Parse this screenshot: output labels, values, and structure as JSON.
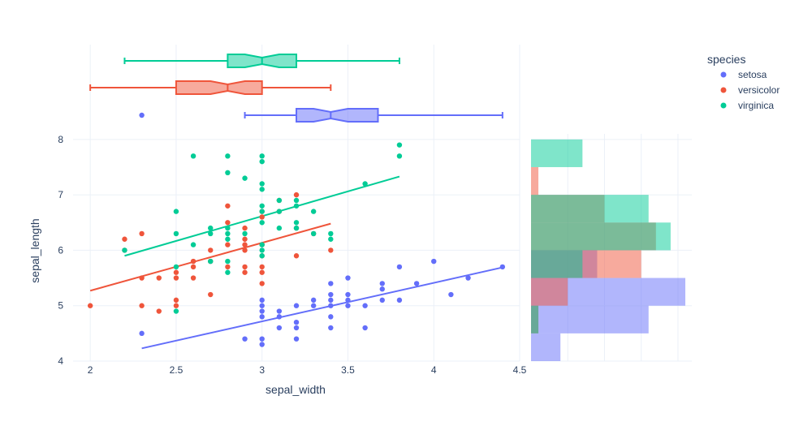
{
  "chart_data": {
    "type": "scatter",
    "xlabel": "sepal_width",
    "ylabel": "sepal_length",
    "xlim": [
      1.9,
      4.5
    ],
    "ylim": [
      4.0,
      8.1
    ],
    "x_ticks": [
      2,
      2.5,
      3,
      3.5,
      4,
      4.5
    ],
    "y_ticks": [
      4,
      5,
      6,
      7,
      8
    ],
    "grid": true,
    "legend": {
      "title": "species",
      "placement": "top-right"
    },
    "series": [
      {
        "name": "setosa",
        "color": "#636efa",
        "points": [
          [
            2.3,
            4.5
          ],
          [
            2.9,
            4.4
          ],
          [
            3,
            4.3
          ],
          [
            3,
            4.4
          ],
          [
            3,
            4.8
          ],
          [
            3,
            4.9
          ],
          [
            3,
            5
          ],
          [
            3,
            5.1
          ],
          [
            3.1,
            4.6
          ],
          [
            3.1,
            4.8
          ],
          [
            3.1,
            4.9
          ],
          [
            3.2,
            4.4
          ],
          [
            3.2,
            4.6
          ],
          [
            3.2,
            4.7
          ],
          [
            3.2,
            5
          ],
          [
            3.3,
            5
          ],
          [
            3.3,
            5.1
          ],
          [
            3.4,
            4.6
          ],
          [
            3.4,
            4.8
          ],
          [
            3.4,
            5
          ],
          [
            3.4,
            5.1
          ],
          [
            3.4,
            5.2
          ],
          [
            3.4,
            5.4
          ],
          [
            3.5,
            5
          ],
          [
            3.5,
            5.1
          ],
          [
            3.5,
            5.2
          ],
          [
            3.5,
            5.5
          ],
          [
            3.6,
            4.6
          ],
          [
            3.6,
            5
          ],
          [
            3.7,
            5.1
          ],
          [
            3.7,
            5.3
          ],
          [
            3.7,
            5.4
          ],
          [
            3.8,
            5.1
          ],
          [
            3.8,
            5.7
          ],
          [
            3.9,
            5.4
          ],
          [
            4,
            5.8
          ],
          [
            4.1,
            5.2
          ],
          [
            4.2,
            5.5
          ],
          [
            4.4,
            5.7
          ]
        ],
        "trend": [
          [
            2.3,
            4.23
          ],
          [
            4.4,
            5.69
          ]
        ],
        "box": {
          "q1": 3.2,
          "median": 3.4,
          "q3": 3.675,
          "notch_low": 3.3,
          "notch_high": 3.5,
          "whisker_low": 2.9,
          "whisker_high": 4.4,
          "outliers": [
            2.3
          ]
        },
        "histogram": [
          {
            "bin": [
              4,
              4.5
            ],
            "count": 4
          },
          {
            "bin": [
              4.5,
              5
            ],
            "count": 16
          },
          {
            "bin": [
              5,
              5.5
            ],
            "count": 21
          },
          {
            "bin": [
              5.5,
              6
            ],
            "count": 9
          }
        ]
      },
      {
        "name": "versicolor",
        "color": "#ef553b",
        "points": [
          [
            2,
            5
          ],
          [
            2.2,
            6
          ],
          [
            2.2,
            6.2
          ],
          [
            2.3,
            5
          ],
          [
            2.3,
            5.5
          ],
          [
            2.3,
            6.3
          ],
          [
            2.4,
            4.9
          ],
          [
            2.4,
            5.5
          ],
          [
            2.5,
            5
          ],
          [
            2.5,
            5.1
          ],
          [
            2.5,
            5.5
          ],
          [
            2.5,
            5.6
          ],
          [
            2.6,
            5.5
          ],
          [
            2.6,
            5.7
          ],
          [
            2.6,
            5.8
          ],
          [
            2.7,
            5.2
          ],
          [
            2.7,
            5.8
          ],
          [
            2.7,
            6
          ],
          [
            2.8,
            5.7
          ],
          [
            2.8,
            6.1
          ],
          [
            2.8,
            6.5
          ],
          [
            2.8,
            6.8
          ],
          [
            2.9,
            5.6
          ],
          [
            2.9,
            5.7
          ],
          [
            2.9,
            6
          ],
          [
            2.9,
            6.1
          ],
          [
            2.9,
            6.2
          ],
          [
            2.9,
            6.4
          ],
          [
            3,
            5.4
          ],
          [
            3,
            5.6
          ],
          [
            3,
            5.7
          ],
          [
            3,
            5.9
          ],
          [
            3,
            6.1
          ],
          [
            3,
            6.6
          ],
          [
            3,
            6.7
          ],
          [
            3.1,
            6.7
          ],
          [
            3.1,
            6.9
          ],
          [
            3.2,
            5.9
          ],
          [
            3.2,
            6.4
          ],
          [
            3.2,
            7
          ],
          [
            3.3,
            6.3
          ],
          [
            3.4,
            6
          ]
        ],
        "trend": [
          [
            2,
            5.27
          ],
          [
            3.4,
            6.48
          ]
        ],
        "box": {
          "q1": 2.5,
          "median": 2.8,
          "q3": 3.0,
          "notch_low": 2.7,
          "notch_high": 2.9,
          "whisker_low": 2.0,
          "whisker_high": 3.4,
          "outliers": []
        },
        "histogram": [
          {
            "bin": [
              4.5,
              5
            ],
            "count": 1
          },
          {
            "bin": [
              5,
              5.5
            ],
            "count": 5
          },
          {
            "bin": [
              5.5,
              6
            ],
            "count": 15
          },
          {
            "bin": [
              6,
              6.5
            ],
            "count": 17
          },
          {
            "bin": [
              6.5,
              7
            ],
            "count": 10
          },
          {
            "bin": [
              7,
              7.5
            ],
            "count": 1
          }
        ]
      },
      {
        "name": "virginica",
        "color": "#00cc96",
        "points": [
          [
            2.2,
            6
          ],
          [
            2.5,
            4.9
          ],
          [
            2.5,
            5.7
          ],
          [
            2.5,
            6.3
          ],
          [
            2.5,
            6.7
          ],
          [
            2.6,
            6.1
          ],
          [
            2.6,
            7.7
          ],
          [
            2.7,
            5.8
          ],
          [
            2.7,
            6.3
          ],
          [
            2.7,
            6.4
          ],
          [
            2.8,
            5.6
          ],
          [
            2.8,
            5.8
          ],
          [
            2.8,
            6.2
          ],
          [
            2.8,
            6.3
          ],
          [
            2.8,
            6.4
          ],
          [
            2.8,
            7.4
          ],
          [
            2.8,
            7.7
          ],
          [
            2.9,
            6.3
          ],
          [
            2.9,
            7.3
          ],
          [
            3,
            5.9
          ],
          [
            3,
            6
          ],
          [
            3,
            6.1
          ],
          [
            3,
            6.5
          ],
          [
            3,
            6.7
          ],
          [
            3,
            6.8
          ],
          [
            3,
            7.1
          ],
          [
            3,
            7.2
          ],
          [
            3,
            7.6
          ],
          [
            3,
            7.7
          ],
          [
            3.1,
            6.4
          ],
          [
            3.1,
            6.7
          ],
          [
            3.1,
            6.9
          ],
          [
            3.2,
            6.4
          ],
          [
            3.2,
            6.5
          ],
          [
            3.2,
            6.8
          ],
          [
            3.2,
            6.9
          ],
          [
            3.3,
            6.3
          ],
          [
            3.3,
            6.7
          ],
          [
            3.4,
            6.2
          ],
          [
            3.4,
            6.3
          ],
          [
            3.6,
            7.2
          ],
          [
            3.8,
            7.7
          ],
          [
            3.8,
            7.9
          ]
        ],
        "trend": [
          [
            2.2,
            5.9
          ],
          [
            3.8,
            7.33
          ]
        ],
        "box": {
          "q1": 2.8,
          "median": 3.0,
          "q3": 3.2,
          "notch_low": 2.9,
          "notch_high": 3.1,
          "whisker_low": 2.2,
          "whisker_high": 3.8,
          "outliers": []
        },
        "histogram": [
          {
            "bin": [
              4.5,
              5
            ],
            "count": 1
          },
          {
            "bin": [
              5.5,
              6
            ],
            "count": 7
          },
          {
            "bin": [
              6,
              6.5
            ],
            "count": 19
          },
          {
            "bin": [
              6.5,
              7
            ],
            "count": 16
          },
          {
            "bin": [
              7.5,
              8
            ],
            "count": 7
          }
        ]
      }
    ]
  }
}
